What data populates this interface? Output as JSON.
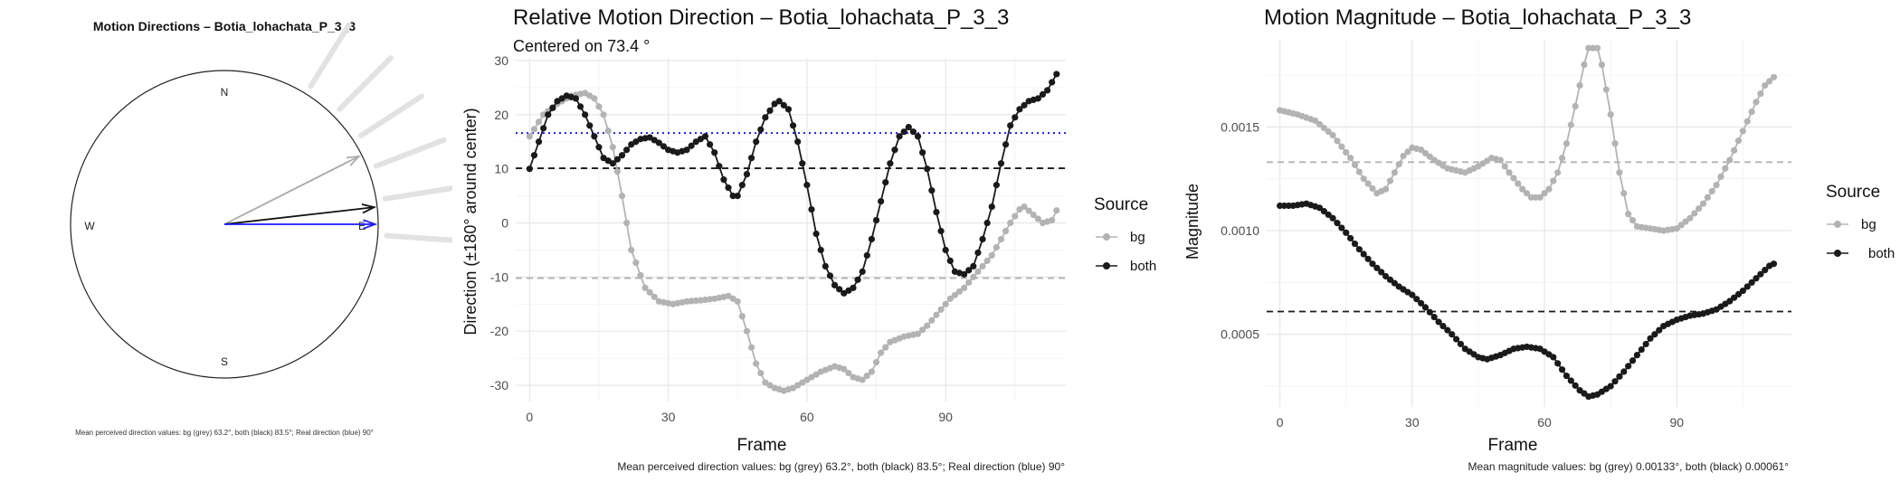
{
  "compass": {
    "title": "Motion Directions – Botia_lohachata_P_3_3",
    "labels": {
      "n": "N",
      "e": "E",
      "s": "S",
      "w": "W"
    },
    "arrows": [
      {
        "name": "bg",
        "angle_deg": 63.2,
        "color": "#aaaaaa"
      },
      {
        "name": "both",
        "angle_deg": 83.5,
        "color": "#111111"
      },
      {
        "name": "real",
        "angle_deg": 90,
        "color": "#1a1aff"
      }
    ],
    "caption": "Mean perceived direction values: bg (grey) 63.2°, both (black) 83.5°; Real direction (blue) 90°"
  },
  "direction": {
    "title": "Relative Motion Direction – Botia_lohachata_P_3_3",
    "subtitle": "Centered on  73.4 °",
    "caption": "Mean perceived direction values: bg (grey) 63.2°, both (black) 83.5°; Real direction (blue) 90°",
    "legend_title": "Source",
    "legend_items": [
      "bg",
      "both"
    ]
  },
  "magnitude": {
    "title": "Motion Magnitude – Botia_lohachata_P_3_3",
    "caption": "Mean magnitude values: bg (grey) 0.00133°, both (black) 0.00061°",
    "legend_title": "Source",
    "legend_items": [
      "bg",
      "both"
    ]
  },
  "colors": {
    "bg": "#b3b3b3",
    "both": "#1a1a1a",
    "real": "#1a1aff"
  },
  "chart_data": [
    {
      "type": "line",
      "title": "Relative Motion Direction – Botia_lohachata_P_3_3",
      "subtitle": "Centered on  73.4 °",
      "xlabel": "Frame",
      "ylabel": "Direction (±180° around center)",
      "xlim": [
        -3,
        116
      ],
      "ylim": [
        -33,
        30.5
      ],
      "xticks": [
        0,
        30,
        60,
        90
      ],
      "yticks": [
        -30,
        -20,
        -10,
        0,
        10,
        20,
        30
      ],
      "legend": "right",
      "grid": true,
      "reference_lines": [
        {
          "name": "bg",
          "y": -10.2,
          "style": "dashed"
        },
        {
          "name": "both",
          "y": 10.1,
          "style": "dashed"
        },
        {
          "name": "real",
          "y": 16.6,
          "style": "dotted"
        }
      ],
      "series": [
        {
          "name": "bg",
          "points": [
            [
              0,
              16
            ],
            [
              3,
              20
            ],
            [
              6,
              22
            ],
            [
              9,
              23.5
            ],
            [
              12,
              24
            ],
            [
              14,
              23
            ],
            [
              16,
              20
            ],
            [
              18,
              14
            ],
            [
              20,
              5
            ],
            [
              22,
              -5
            ],
            [
              25,
              -12
            ],
            [
              28,
              -14.5
            ],
            [
              31,
              -15
            ],
            [
              34,
              -14.5
            ],
            [
              37,
              -14.3
            ],
            [
              40,
              -14
            ],
            [
              43,
              -13.5
            ],
            [
              45,
              -14.5
            ],
            [
              47,
              -20
            ],
            [
              49,
              -26
            ],
            [
              51,
              -29.5
            ],
            [
              53,
              -30.5
            ],
            [
              55,
              -31
            ],
            [
              57,
              -30.5
            ],
            [
              60,
              -29
            ],
            [
              63,
              -27.5
            ],
            [
              66,
              -26.5
            ],
            [
              68,
              -27
            ],
            [
              70,
              -28.5
            ],
            [
              72,
              -29
            ],
            [
              74,
              -27.5
            ],
            [
              76,
              -24
            ],
            [
              78,
              -22
            ],
            [
              81,
              -21
            ],
            [
              84,
              -20.5
            ],
            [
              86,
              -19
            ],
            [
              88,
              -17
            ],
            [
              91,
              -14
            ],
            [
              94,
              -12
            ],
            [
              97,
              -9
            ],
            [
              100,
              -6
            ],
            [
              102,
              -3
            ],
            [
              104,
              0
            ],
            [
              106,
              2.5
            ],
            [
              107,
              3
            ],
            [
              109,
              1.5
            ],
            [
              111,
              0
            ],
            [
              113,
              0.5
            ],
            [
              114,
              2.3
            ]
          ]
        },
        {
          "name": "both",
          "points": [
            [
              0,
              10
            ],
            [
              2,
              15
            ],
            [
              4,
              20
            ],
            [
              6,
              22.5
            ],
            [
              8,
              23.5
            ],
            [
              10,
              23
            ],
            [
              12,
              20
            ],
            [
              14,
              16
            ],
            [
              16,
              12
            ],
            [
              18,
              11
            ],
            [
              20,
              12.5
            ],
            [
              22,
              14.5
            ],
            [
              24,
              15.5
            ],
            [
              26,
              15.8
            ],
            [
              28,
              14.8
            ],
            [
              30,
              13.5
            ],
            [
              32,
              13
            ],
            [
              34,
              13.5
            ],
            [
              36,
              15
            ],
            [
              38,
              16
            ],
            [
              40,
              13
            ],
            [
              42,
              8
            ],
            [
              44,
              5
            ],
            [
              45,
              5
            ],
            [
              47,
              9
            ],
            [
              49,
              15
            ],
            [
              51,
              19.5
            ],
            [
              53,
              22
            ],
            [
              54,
              22.5
            ],
            [
              56,
              21
            ],
            [
              58,
              15
            ],
            [
              60,
              7
            ],
            [
              62,
              -2
            ],
            [
              64,
              -8
            ],
            [
              66,
              -11.5
            ],
            [
              68,
              -13
            ],
            [
              70,
              -12
            ],
            [
              72,
              -9
            ],
            [
              74,
              -3
            ],
            [
              76,
              4
            ],
            [
              78,
              11
            ],
            [
              80,
              16
            ],
            [
              82,
              17.7
            ],
            [
              84,
              16
            ],
            [
              86,
              10
            ],
            [
              88,
              2
            ],
            [
              90,
              -5
            ],
            [
              92,
              -9
            ],
            [
              94,
              -9.5
            ],
            [
              96,
              -8
            ],
            [
              98,
              -3
            ],
            [
              100,
              3
            ],
            [
              102,
              11
            ],
            [
              104,
              18
            ],
            [
              106,
              21
            ],
            [
              108,
              22.5
            ],
            [
              110,
              23
            ],
            [
              112,
              24.5
            ],
            [
              114,
              27.5
            ]
          ]
        }
      ]
    },
    {
      "type": "line",
      "title": "Motion Magnitude – Botia_lohachata_P_3_3",
      "xlabel": "Frame",
      "ylabel": "Magnitude",
      "xlim": [
        -3,
        116
      ],
      "ylim": [
        0.00015,
        0.00192
      ],
      "xticks": [
        0,
        30,
        60,
        90
      ],
      "yticks": [
        0.0005,
        0.001,
        0.0015
      ],
      "ytick_labels": [
        "0.0005",
        "0.0010",
        "0.0015"
      ],
      "legend": "right",
      "grid": true,
      "reference_lines": [
        {
          "name": "bg",
          "y": 0.00133,
          "style": "dashed"
        },
        {
          "name": "both",
          "y": 0.00061,
          "style": "dashed"
        }
      ],
      "series": [
        {
          "name": "bg",
          "points": [
            [
              0,
              0.00158
            ],
            [
              4,
              0.00156
            ],
            [
              8,
              0.00153
            ],
            [
              12,
              0.00146
            ],
            [
              16,
              0.00135
            ],
            [
              19,
              0.00125
            ],
            [
              22,
              0.00118
            ],
            [
              24,
              0.0012
            ],
            [
              26,
              0.00128
            ],
            [
              28,
              0.00136
            ],
            [
              30,
              0.0014
            ],
            [
              32,
              0.00139
            ],
            [
              35,
              0.00134
            ],
            [
              38,
              0.0013
            ],
            [
              42,
              0.00128
            ],
            [
              45,
              0.00131
            ],
            [
              48,
              0.00135
            ],
            [
              50,
              0.00134
            ],
            [
              52,
              0.00128
            ],
            [
              55,
              0.0012
            ],
            [
              57,
              0.00116
            ],
            [
              59,
              0.00116
            ],
            [
              61,
              0.0012
            ],
            [
              63,
              0.00128
            ],
            [
              65,
              0.00142
            ],
            [
              67,
              0.0016
            ],
            [
              69,
              0.0018
            ],
            [
              70,
              0.00188
            ],
            [
              72,
              0.00188
            ],
            [
              73,
              0.0018
            ],
            [
              75,
              0.00156
            ],
            [
              77,
              0.00128
            ],
            [
              79,
              0.00108
            ],
            [
              81,
              0.00102
            ],
            [
              84,
              0.00101
            ],
            [
              87,
              0.001
            ],
            [
              90,
              0.00101
            ],
            [
              93,
              0.00106
            ],
            [
              96,
              0.00113
            ],
            [
              99,
              0.00122
            ],
            [
              102,
              0.00134
            ],
            [
              105,
              0.00148
            ],
            [
              108,
              0.00162
            ],
            [
              110,
              0.0017
            ],
            [
              112,
              0.00174
            ]
          ]
        },
        {
          "name": "both",
          "points": [
            [
              0,
              0.00112
            ],
            [
              3,
              0.00112
            ],
            [
              6,
              0.00113
            ],
            [
              9,
              0.00111
            ],
            [
              12,
              0.00106
            ],
            [
              15,
              0.00099
            ],
            [
              18,
              0.00091
            ],
            [
              21,
              0.00084
            ],
            [
              24,
              0.00078
            ],
            [
              27,
              0.00073
            ],
            [
              30,
              0.00069
            ],
            [
              33,
              0.00063
            ],
            [
              36,
              0.00056
            ],
            [
              39,
              0.0005
            ],
            [
              42,
              0.00043
            ],
            [
              45,
              0.00039
            ],
            [
              47,
              0.00038
            ],
            [
              50,
              0.0004
            ],
            [
              53,
              0.00043
            ],
            [
              56,
              0.00044
            ],
            [
              59,
              0.00043
            ],
            [
              62,
              0.00039
            ],
            [
              65,
              0.0003
            ],
            [
              68,
              0.00023
            ],
            [
              70,
              0.0002
            ],
            [
              72,
              0.00021
            ],
            [
              75,
              0.00025
            ],
            [
              78,
              0.00032
            ],
            [
              81,
              0.0004
            ],
            [
              84,
              0.00048
            ],
            [
              87,
              0.00054
            ],
            [
              90,
              0.00057
            ],
            [
              93,
              0.00059
            ],
            [
              96,
              0.0006
            ],
            [
              99,
              0.00062
            ],
            [
              102,
              0.00066
            ],
            [
              105,
              0.00071
            ],
            [
              108,
              0.00077
            ],
            [
              111,
              0.00083
            ],
            [
              112,
              0.00084
            ]
          ]
        }
      ]
    }
  ]
}
